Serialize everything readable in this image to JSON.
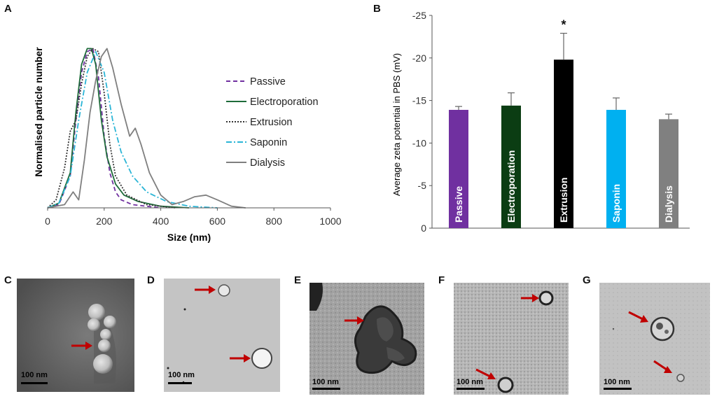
{
  "panels": {
    "A": "A",
    "B": "B",
    "C": "C",
    "D": "D",
    "E": "E",
    "F": "F",
    "G": "G"
  },
  "chart_data": [
    {
      "type": "line",
      "xlabel": "Size (nm)",
      "ylabel": "Normalised particle number",
      "xlim": [
        0,
        1000
      ],
      "ylim": [
        0,
        1.05
      ],
      "xticks": [
        0,
        200,
        400,
        600,
        800,
        1000
      ],
      "legend_position": "right",
      "grid": false,
      "series": [
        {
          "name": "Passive",
          "color": "#7030a0",
          "dash": "6,4",
          "x": [
            0,
            40,
            80,
            100,
            120,
            140,
            160,
            180,
            200,
            220,
            240,
            260,
            300,
            400
          ],
          "y": [
            0,
            0.02,
            0.2,
            0.55,
            0.85,
            0.98,
            1.0,
            0.82,
            0.45,
            0.22,
            0.1,
            0.05,
            0.02,
            0
          ]
        },
        {
          "name": "Electroporation",
          "color": "#1e6b3a",
          "dash": "",
          "x": [
            0,
            40,
            80,
            100,
            120,
            140,
            155,
            170,
            190,
            210,
            240,
            270,
            320,
            400,
            500
          ],
          "y": [
            0,
            0.03,
            0.22,
            0.6,
            0.9,
            1.0,
            1.0,
            0.9,
            0.55,
            0.32,
            0.15,
            0.08,
            0.04,
            0.01,
            0
          ]
        },
        {
          "name": "Extrusion",
          "color": "#333333",
          "dash": "2,2",
          "x": [
            0,
            30,
            60,
            80,
            100,
            120,
            140,
            160,
            180,
            200,
            220,
            240,
            280,
            350,
            450
          ],
          "y": [
            0,
            0.05,
            0.25,
            0.48,
            0.55,
            0.78,
            0.95,
            1.0,
            0.98,
            0.72,
            0.4,
            0.2,
            0.08,
            0.02,
            0
          ]
        },
        {
          "name": "Saponin",
          "color": "#2bb5d6",
          "dash": "8,3,2,3",
          "x": [
            0,
            40,
            80,
            110,
            140,
            170,
            200,
            230,
            260,
            300,
            350,
            420,
            500,
            600
          ],
          "y": [
            0,
            0.03,
            0.2,
            0.55,
            0.85,
            0.98,
            0.85,
            0.55,
            0.35,
            0.2,
            0.1,
            0.04,
            0.01,
            0
          ]
        },
        {
          "name": "Dialysis",
          "color": "#7f7f7f",
          "dash": "",
          "x": [
            0,
            60,
            90,
            110,
            130,
            150,
            170,
            190,
            210,
            230,
            260,
            290,
            310,
            330,
            360,
            400,
            440,
            480,
            520,
            560,
            600,
            650,
            700
          ],
          "y": [
            0,
            0.02,
            0.1,
            0.05,
            0.3,
            0.6,
            0.8,
            0.95,
            1.0,
            0.88,
            0.65,
            0.45,
            0.5,
            0.4,
            0.22,
            0.08,
            0.02,
            0.04,
            0.07,
            0.08,
            0.05,
            0.01,
            0
          ]
        }
      ]
    },
    {
      "type": "bar",
      "ylabel": "Average zeta potential in PBS (mV)",
      "ylim": [
        0,
        -25
      ],
      "yticks": [
        "0",
        "-5",
        "-10",
        "-15",
        "-20",
        "-25"
      ],
      "categories": [
        "Passive",
        "Electroporation",
        "Extrusion",
        "Saponin",
        "Dialysis"
      ],
      "values": [
        -13.9,
        -14.4,
        -19.8,
        -13.9,
        -12.8
      ],
      "errors": [
        0.4,
        1.5,
        3.1,
        1.4,
        0.6
      ],
      "colors": [
        "#7030a0",
        "#0b3d13",
        "#000000",
        "#00b0f0",
        "#808080"
      ],
      "annotations": [
        {
          "category": "Extrusion",
          "text": "*"
        }
      ]
    }
  ],
  "tem_images": [
    {
      "panel": "C",
      "scale_label": "100 nm"
    },
    {
      "panel": "D",
      "scale_label": "100 nm"
    },
    {
      "panel": "E",
      "scale_label": "100 nm"
    },
    {
      "panel": "F",
      "scale_label": "100 nm"
    },
    {
      "panel": "G",
      "scale_label": "100 nm"
    }
  ]
}
